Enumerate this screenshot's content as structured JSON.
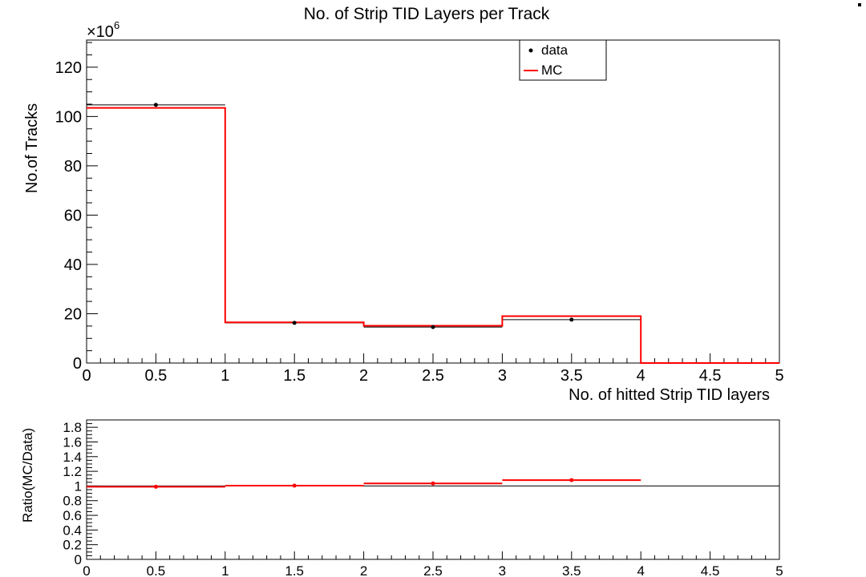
{
  "chart_data": [
    {
      "type": "histogram",
      "title": "No. of Strip TID Layers per Track",
      "xlabel": "No. of hitted Strip TID layers",
      "ylabel": "No.of Tracks",
      "y_multiplier": "×10",
      "y_multiplier_exponent": "6",
      "xlim": [
        0,
        5
      ],
      "ylim": [
        0,
        131
      ],
      "x_ticks": [
        "0",
        "0.5",
        "1",
        "1.5",
        "2",
        "2.5",
        "3",
        "3.5",
        "4",
        "4.5",
        "5"
      ],
      "y_ticks": [
        "0",
        "20",
        "40",
        "60",
        "80",
        "100",
        "120"
      ],
      "bins": [
        0,
        1,
        2,
        3,
        4,
        5
      ],
      "series": [
        {
          "name": "data",
          "style": "markers",
          "color": "#000000",
          "x": [
            0.5,
            1.5,
            2.5,
            3.5,
            4.5
          ],
          "values": [
            104.7,
            16.3,
            14.6,
            17.6,
            0
          ]
        },
        {
          "name": "MC",
          "style": "step",
          "color": "#ff0000",
          "values": [
            103.5,
            16.5,
            15.1,
            19.0,
            0
          ]
        }
      ],
      "legend": {
        "entries": [
          "data",
          "MC"
        ],
        "position": "top-right"
      }
    },
    {
      "type": "scatter",
      "ylabel": "Ratio(MC/Data)",
      "xlim": [
        0,
        5
      ],
      "ylim": [
        0,
        1.9
      ],
      "x_ticks": [
        "0",
        "0.5",
        "1",
        "1.5",
        "2",
        "2.5",
        "3",
        "3.5",
        "4",
        "4.5",
        "5"
      ],
      "y_ticks": [
        "0",
        "0.2",
        "0.4",
        "0.6",
        "0.8",
        "1",
        "1.2",
        "1.4",
        "1.6",
        "1.8"
      ],
      "reference_line": 1,
      "series": [
        {
          "color": "#ff0000",
          "x": [
            0.5,
            1.5,
            2.5,
            3.5
          ],
          "x_halfwidth": 0.5,
          "values": [
            0.99,
            1.005,
            1.035,
            1.08
          ]
        }
      ]
    }
  ]
}
